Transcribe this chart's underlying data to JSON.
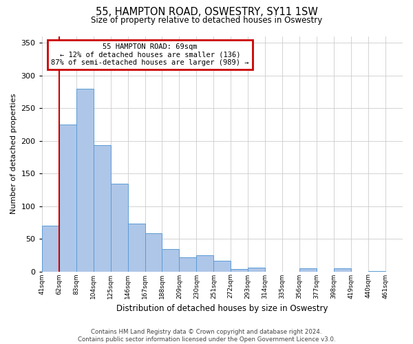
{
  "title": "55, HAMPTON ROAD, OSWESTRY, SY11 1SW",
  "subtitle": "Size of property relative to detached houses in Oswestry",
  "xlabel": "Distribution of detached houses by size in Oswestry",
  "ylabel": "Number of detached properties",
  "bar_labels": [
    "41sqm",
    "62sqm",
    "83sqm",
    "104sqm",
    "125sqm",
    "146sqm",
    "167sqm",
    "188sqm",
    "209sqm",
    "230sqm",
    "251sqm",
    "272sqm",
    "293sqm",
    "314sqm",
    "335sqm",
    "356sqm",
    "377sqm",
    "398sqm",
    "419sqm",
    "440sqm",
    "461sqm"
  ],
  "bar_values": [
    70,
    225,
    280,
    193,
    134,
    73,
    58,
    34,
    22,
    25,
    16,
    4,
    6,
    0,
    0,
    5,
    0,
    5,
    0,
    1,
    0
  ],
  "bar_color": "#aec6e8",
  "bar_edge_color": "#5b9bd5",
  "property_line_x": 1,
  "property_line_color": "#cc0000",
  "ylim": [
    0,
    360
  ],
  "yticks": [
    0,
    50,
    100,
    150,
    200,
    250,
    300,
    350
  ],
  "annotation_title": "55 HAMPTON ROAD: 69sqm",
  "annotation_line1": "← 12% of detached houses are smaller (136)",
  "annotation_line2": "87% of semi-detached houses are larger (989) →",
  "annotation_box_color": "#cc0000",
  "footer_line1": "Contains HM Land Registry data © Crown copyright and database right 2024.",
  "footer_line2": "Contains public sector information licensed under the Open Government Licence v3.0.",
  "background_color": "#ffffff",
  "grid_color": "#cccccc"
}
